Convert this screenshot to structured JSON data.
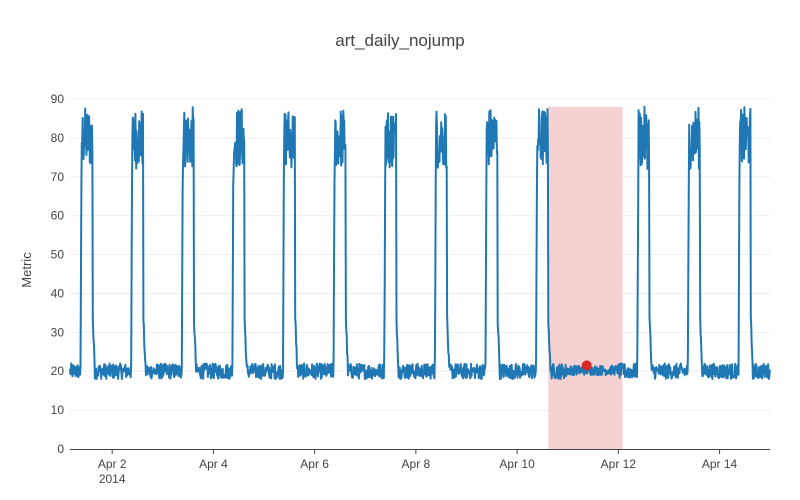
{
  "chart_data": {
    "type": "line",
    "title": "art_daily_nojump",
    "xlabel": "",
    "ylabel": "Metric",
    "x_tick_labels": [
      "Apr 2",
      "Apr 4",
      "Apr 6",
      "Apr 8",
      "Apr 10",
      "Apr 12",
      "Apr 14"
    ],
    "x_year_label": "2014",
    "y_tick_labels": [
      "0",
      "10",
      "20",
      "30",
      "40",
      "50",
      "60",
      "70",
      "80",
      "90"
    ],
    "xlim": [
      "2014-04-01 04:00",
      "2014-04-14 23:55"
    ],
    "ylim": [
      0,
      90
    ],
    "grid": true,
    "legend": "none",
    "series": [
      {
        "color": "#1f77b4",
        "pattern": "daily square wave",
        "baseline_range": [
          18,
          22
        ],
        "plateau_range": [
          72,
          88
        ],
        "days": [
          {
            "date": "2014-04-01",
            "rise": "09:00",
            "fall": "14:40"
          },
          {
            "date": "2014-04-02",
            "rise": "09:00",
            "fall": "14:40"
          },
          {
            "date": "2014-04-03",
            "rise": "09:00",
            "fall": "14:40"
          },
          {
            "date": "2014-04-04",
            "rise": "09:00",
            "fall": "14:40"
          },
          {
            "date": "2014-04-05",
            "rise": "09:00",
            "fall": "14:40"
          },
          {
            "date": "2014-04-06",
            "rise": "09:00",
            "fall": "14:40"
          },
          {
            "date": "2014-04-07",
            "rise": "09:00",
            "fall": "14:40"
          },
          {
            "date": "2014-04-08",
            "rise": "09:00",
            "fall": "14:40"
          },
          {
            "date": "2014-04-09",
            "rise": "09:00",
            "fall": "14:40"
          },
          {
            "date": "2014-04-10",
            "rise": "09:00",
            "fall": "14:40"
          },
          {
            "date": "2014-04-12",
            "rise": "09:00",
            "fall": "14:40"
          },
          {
            "date": "2014-04-13",
            "rise": "09:00",
            "fall": "14:40"
          },
          {
            "date": "2014-04-14",
            "rise": "09:00",
            "fall": "14:40"
          }
        ]
      }
    ],
    "highlight_region": {
      "x_start": "2014-04-10 14:50",
      "x_end": "2014-04-12 02:00",
      "color": "#f4cccc"
    },
    "anomaly_point": {
      "x": "2014-04-11 09:00",
      "y": 21.5,
      "color": "#d62728"
    }
  }
}
